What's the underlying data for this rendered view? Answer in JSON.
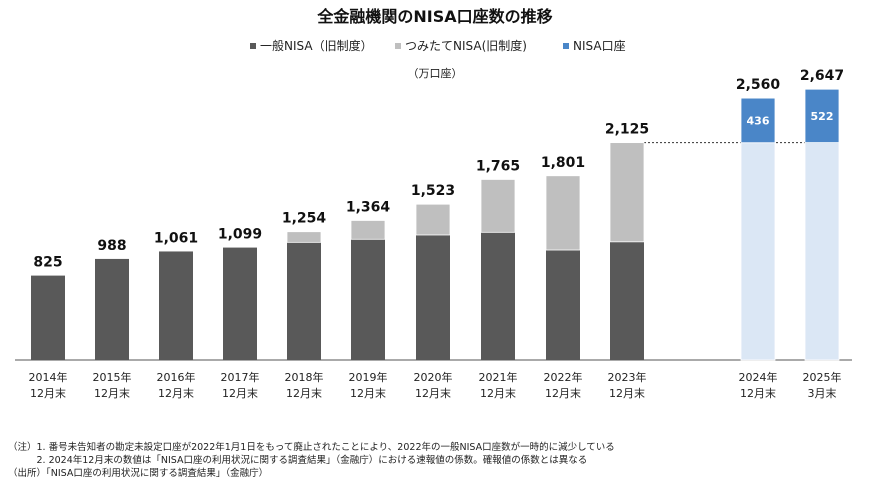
{
  "chart_data": {
    "type": "bar",
    "stacked": true,
    "title": "全金融機関のNISA口座数の推移",
    "unit_label": "（万口座）",
    "categories": [
      [
        "2014年",
        "12月末"
      ],
      [
        "2015年",
        "12月末"
      ],
      [
        "2016年",
        "12月末"
      ],
      [
        "2017年",
        "12月末"
      ],
      [
        "2018年",
        "12月末"
      ],
      [
        "2019年",
        "12月末"
      ],
      [
        "2020年",
        "12月末"
      ],
      [
        "2021年",
        "12月末"
      ],
      [
        "2022年",
        "12月末"
      ],
      [
        "2023年",
        "12月末"
      ],
      [
        "2024年",
        "12月末"
      ],
      [
        "2025年",
        "3月末"
      ]
    ],
    "series": [
      {
        "name": "一般NISA（旧制度）",
        "color": "#595959",
        "values": [
          825,
          988,
          1061,
          1099,
          1150,
          1180,
          1222,
          1248,
          1075,
          1155,
          null,
          null
        ]
      },
      {
        "name": "つみたてNISA(旧制度)",
        "color": "#bfbfbf",
        "values": [
          0,
          0,
          0,
          0,
          104,
          184,
          301,
          517,
          726,
          970,
          null,
          null
        ]
      },
      {
        "color": "#dbe7f5",
        "values": [
          null,
          null,
          null,
          null,
          null,
          null,
          null,
          null,
          null,
          null,
          2124,
          2125
        ]
      },
      {
        "name": "NISA口座",
        "color": "#4a86c8",
        "values": [
          null,
          null,
          null,
          null,
          null,
          null,
          null,
          null,
          null,
          null,
          436,
          522
        ]
      }
    ],
    "legend": [
      {
        "label": "一般NISA（旧制度）",
        "color": "#595959"
      },
      {
        "label": "つみたてNISA(旧制度)",
        "color": "#bfbfbf"
      },
      {
        "label": "NISA口座",
        "color": "#4a86c8"
      }
    ],
    "legend_position": "top",
    "totals": [
      "825",
      "988",
      "1,061",
      "1,099",
      "1,254",
      "1,364",
      "1,523",
      "1,765",
      "1,801",
      "2,125",
      "2,560",
      "2,647"
    ],
    "new_labels": {
      "10": "436",
      "11": "522"
    },
    "reference_line": 2125,
    "ylim": [
      0,
      2700
    ],
    "grid": false
  },
  "notes": [
    "（注）1. 番号未告知者の勘定未設定口座が2022年1月1日をもって廃止されたことにより、2022年の一般NISA口座数が一時的に減少している",
    "　　　2. 2024年12月末の数値は「NISA口座の利用状況に関する調査結果」（金融庁）における速報値の係数。確報値の係数とは異なる",
    "（出所）「NISA口座の利用状況に関する調査結果」（金融庁）"
  ]
}
